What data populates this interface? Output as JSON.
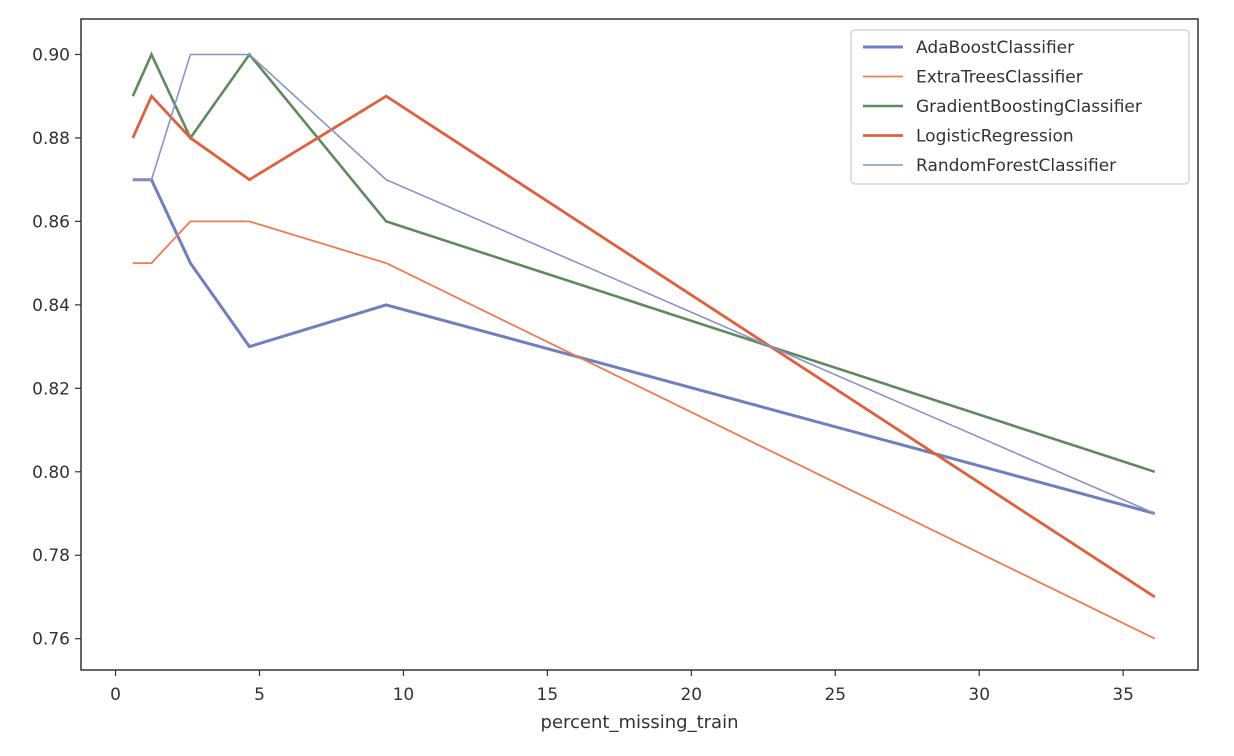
{
  "chart_data": {
    "type": "line",
    "xlabel": "percent_missing_train",
    "ylabel": "",
    "title": "",
    "xlim": [
      -1.2,
      37.6
    ],
    "ylim": [
      0.7525,
      0.9085
    ],
    "xticks": [
      0,
      5,
      10,
      15,
      20,
      25,
      30,
      35
    ],
    "yticks": [
      0.76,
      0.78,
      0.8,
      0.82,
      0.84,
      0.86,
      0.88,
      0.9
    ],
    "ytick_labels": [
      "0.76",
      "0.78",
      "0.80",
      "0.82",
      "0.84",
      "0.86",
      "0.88",
      "0.90"
    ],
    "xtick_labels": [
      "0",
      "5",
      "10",
      "15",
      "20",
      "25",
      "30",
      "35"
    ],
    "grid": false,
    "legend_position": "top-right",
    "x": [
      0.6,
      1.25,
      2.6,
      4.65,
      9.4,
      36.1
    ],
    "series": [
      {
        "name": "AdaBoostClassifier",
        "color": "#6f7fbf",
        "values": [
          0.87,
          0.87,
          0.85,
          0.83,
          0.84,
          0.79
        ]
      },
      {
        "name": "ExtraTreesClassifier",
        "color": "#f07a52",
        "values": [
          0.85,
          0.85,
          0.86,
          0.86,
          0.85,
          0.76
        ]
      },
      {
        "name": "GradientBoostingClassifier",
        "color": "#5f8a5f",
        "values": [
          0.89,
          0.9,
          0.88,
          0.9,
          0.86,
          0.8
        ]
      },
      {
        "name": "LogisticRegression",
        "color": "#e0603c",
        "values": [
          0.88,
          0.89,
          0.88,
          0.87,
          0.89,
          0.77
        ]
      },
      {
        "name": "RandomForestClassifier",
        "color": "#8a93c6",
        "values": [
          0.87,
          0.87,
          0.9,
          0.9,
          0.87,
          0.79
        ]
      }
    ]
  }
}
